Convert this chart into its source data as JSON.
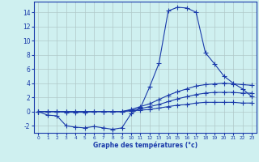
{
  "xlabel": "Graphe des températures (°c)",
  "bg_color": "#cff0f0",
  "grid_color": "#b0c8c8",
  "line_color": "#1a3aaa",
  "x_ticks": [
    0,
    1,
    2,
    3,
    4,
    5,
    6,
    7,
    8,
    9,
    10,
    11,
    12,
    13,
    14,
    15,
    16,
    17,
    18,
    19,
    20,
    21,
    22,
    23
  ],
  "y_ticks": [
    -2,
    0,
    2,
    4,
    6,
    8,
    10,
    12,
    14
  ],
  "ylim": [
    -3.0,
    15.5
  ],
  "xlim": [
    -0.5,
    23.5
  ],
  "line1_x": [
    0,
    1,
    2,
    3,
    4,
    5,
    6,
    7,
    8,
    9,
    10,
    11,
    12,
    13,
    14,
    15,
    16,
    17,
    18,
    19,
    20,
    21,
    22,
    23
  ],
  "line1_y": [
    0.0,
    -0.5,
    -0.6,
    -2.0,
    -2.2,
    -2.3,
    -2.1,
    -2.3,
    -2.5,
    -2.3,
    -0.3,
    0.5,
    3.5,
    6.8,
    14.2,
    14.7,
    14.6,
    14.0,
    8.3,
    6.7,
    5.0,
    4.0,
    3.2,
    2.1
  ],
  "line2_x": [
    0,
    1,
    2,
    3,
    4,
    5,
    6,
    7,
    8,
    9,
    10,
    11,
    12,
    13,
    14,
    15,
    16,
    17,
    18,
    19,
    20,
    21,
    22,
    23
  ],
  "line2_y": [
    0.0,
    0.0,
    0.0,
    -0.1,
    -0.1,
    -0.1,
    0.0,
    0.0,
    0.0,
    0.0,
    0.3,
    0.7,
    1.1,
    1.7,
    2.3,
    2.8,
    3.2,
    3.6,
    3.8,
    3.9,
    4.0,
    3.9,
    3.8,
    3.7
  ],
  "line3_x": [
    0,
    1,
    2,
    3,
    4,
    5,
    6,
    7,
    8,
    9,
    10,
    11,
    12,
    13,
    14,
    15,
    16,
    17,
    18,
    19,
    20,
    21,
    22,
    23
  ],
  "line3_y": [
    0.0,
    0.0,
    0.0,
    0.0,
    0.0,
    0.0,
    0.0,
    0.0,
    0.0,
    0.0,
    0.2,
    0.4,
    0.7,
    1.0,
    1.4,
    1.8,
    2.1,
    2.4,
    2.6,
    2.7,
    2.7,
    2.7,
    2.6,
    2.6
  ],
  "line4_x": [
    0,
    1,
    2,
    3,
    4,
    5,
    6,
    7,
    8,
    9,
    10,
    11,
    12,
    13,
    14,
    15,
    16,
    17,
    18,
    19,
    20,
    21,
    22,
    23
  ],
  "line4_y": [
    0.0,
    0.0,
    0.0,
    0.0,
    0.0,
    0.0,
    0.0,
    0.0,
    0.0,
    0.0,
    0.1,
    0.2,
    0.3,
    0.5,
    0.7,
    0.9,
    1.0,
    1.2,
    1.3,
    1.3,
    1.3,
    1.3,
    1.2,
    1.2
  ]
}
